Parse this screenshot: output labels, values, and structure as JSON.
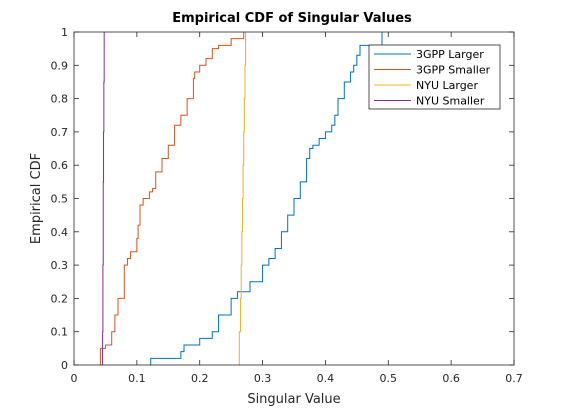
{
  "chart_data": {
    "type": "line",
    "title": "Empirical CDF of Singular Values",
    "xlabel": "Singular Value",
    "ylabel": "Empirical CDF",
    "xlim": [
      0,
      0.7
    ],
    "ylim": [
      0,
      1
    ],
    "xticks": [
      0,
      0.1,
      0.2,
      0.3,
      0.4,
      0.5,
      0.6,
      0.7
    ],
    "xtick_labels": [
      "0",
      "0.1",
      "0.2",
      "0.3",
      "0.4",
      "0.5",
      "0.6",
      "0.7"
    ],
    "yticks": [
      0,
      0.1,
      0.2,
      0.3,
      0.4,
      0.5,
      0.6,
      0.7,
      0.8,
      0.9,
      1
    ],
    "ytick_labels": [
      "0",
      "0.1",
      "0.2",
      "0.3",
      "0.4",
      "0.5",
      "0.6",
      "0.7",
      "0.8",
      "0.9",
      "1"
    ],
    "grid": false,
    "legend_position": "top-right",
    "series": [
      {
        "name": "3GPP Larger",
        "color": "#0072BD",
        "x": [
          0.12,
          0.122,
          0.17,
          0.175,
          0.2,
          0.22,
          0.23,
          0.25,
          0.26,
          0.28,
          0.3,
          0.31,
          0.32,
          0.33,
          0.34,
          0.35,
          0.36,
          0.37,
          0.375,
          0.38,
          0.39,
          0.4,
          0.41,
          0.415,
          0.42,
          0.43,
          0.44,
          0.445,
          0.45,
          0.455,
          0.49
        ],
        "y": [
          0,
          0.02,
          0.04,
          0.06,
          0.08,
          0.1,
          0.15,
          0.2,
          0.22,
          0.25,
          0.3,
          0.32,
          0.35,
          0.4,
          0.45,
          0.5,
          0.55,
          0.62,
          0.65,
          0.66,
          0.68,
          0.7,
          0.72,
          0.75,
          0.8,
          0.85,
          0.88,
          0.9,
          0.93,
          0.96,
          1.0
        ]
      },
      {
        "name": "3GPP Smaller",
        "color": "#D95319",
        "x": [
          0.04,
          0.042,
          0.05,
          0.06,
          0.065,
          0.07,
          0.08,
          0.085,
          0.09,
          0.1,
          0.102,
          0.105,
          0.11,
          0.12,
          0.125,
          0.13,
          0.14,
          0.15,
          0.16,
          0.17,
          0.18,
          0.19,
          0.192,
          0.2,
          0.21,
          0.22,
          0.23,
          0.25,
          0.27
        ],
        "y": [
          0,
          0.05,
          0.06,
          0.1,
          0.15,
          0.2,
          0.3,
          0.32,
          0.34,
          0.38,
          0.42,
          0.48,
          0.5,
          0.52,
          0.53,
          0.58,
          0.62,
          0.66,
          0.72,
          0.75,
          0.8,
          0.86,
          0.88,
          0.9,
          0.92,
          0.95,
          0.96,
          0.98,
          1.0
        ]
      },
      {
        "name": "NYU Larger",
        "color": "#EDB120",
        "x": [
          0.262,
          0.263,
          0.265,
          0.266,
          0.267,
          0.268,
          0.269,
          0.27,
          0.271,
          0.272,
          0.273
        ],
        "y": [
          0,
          0.1,
          0.2,
          0.3,
          0.4,
          0.5,
          0.6,
          0.7,
          0.8,
          0.9,
          1.0
        ]
      },
      {
        "name": "NYU Smaller",
        "color": "#7E2F8E",
        "x": [
          0.045,
          0.0455,
          0.046,
          0.0465,
          0.047,
          0.0475,
          0.048
        ],
        "y": [
          0,
          0.1,
          0.3,
          0.55,
          0.7,
          0.85,
          1.0
        ]
      }
    ]
  }
}
